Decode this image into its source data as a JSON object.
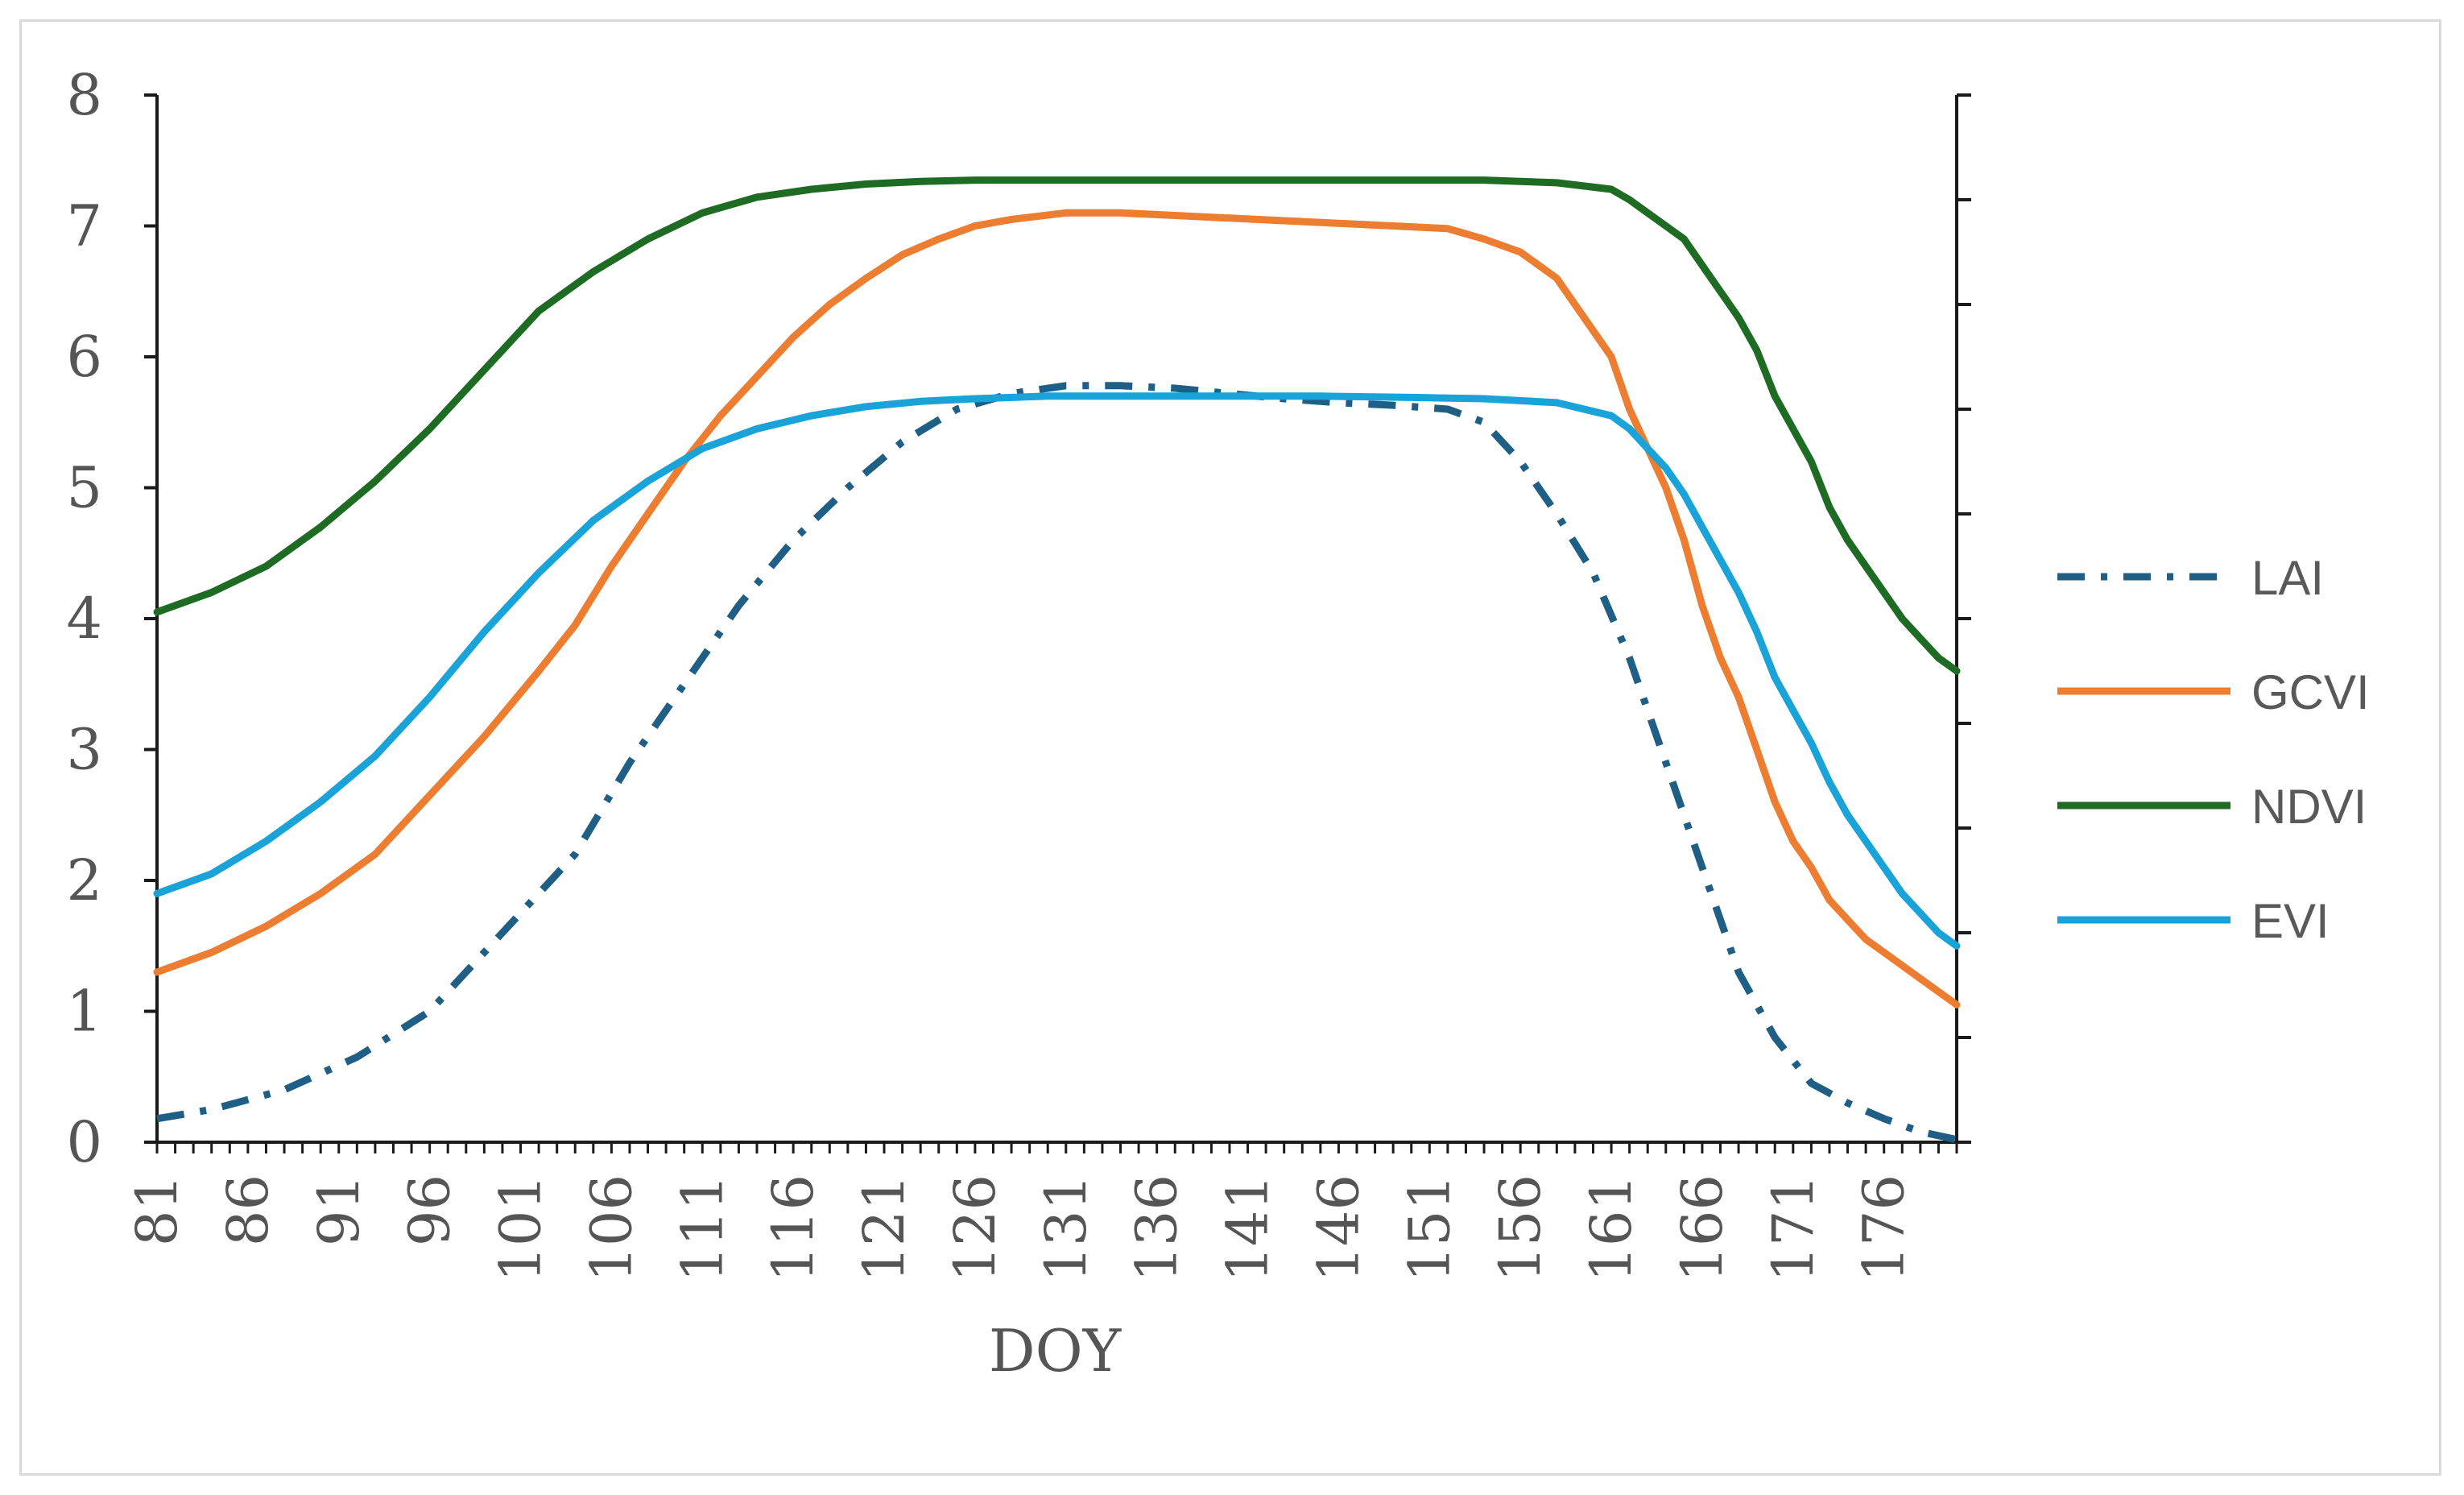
{
  "chart_data": {
    "type": "line",
    "title": "",
    "xlabel": "DOY",
    "ylabel": "",
    "ylim": [
      0,
      8
    ],
    "xlim": [
      81,
      180
    ],
    "yticks": [
      0,
      1,
      2,
      3,
      4,
      5,
      6,
      7,
      8
    ],
    "xtick_labels": [
      "81",
      "86",
      "91",
      "96",
      "101",
      "106",
      "111",
      "116",
      "121",
      "126",
      "131",
      "136",
      "141",
      "146",
      "151",
      "156",
      "161",
      "166",
      "171",
      "176"
    ],
    "grid": false,
    "legend_position": "right",
    "series": [
      {
        "name": "LAI",
        "color": "#1f5f86",
        "style": "dash-dot",
        "x": [
          81,
          84,
          88,
          92,
          96,
          100,
          104,
          107,
          110,
          113,
          116,
          119,
          122,
          125,
          128,
          131,
          134,
          137,
          140,
          143,
          146,
          149,
          152,
          154,
          156,
          158,
          160,
          162,
          164,
          166,
          168,
          170,
          172,
          174,
          176,
          178,
          180
        ],
        "values": [
          0.18,
          0.25,
          0.4,
          0.65,
          1.0,
          1.6,
          2.2,
          2.9,
          3.5,
          4.1,
          4.6,
          5.0,
          5.35,
          5.6,
          5.72,
          5.78,
          5.78,
          5.76,
          5.72,
          5.68,
          5.65,
          5.63,
          5.6,
          5.5,
          5.2,
          4.8,
          4.35,
          3.7,
          2.9,
          2.1,
          1.3,
          0.8,
          0.45,
          0.3,
          0.18,
          0.08,
          0.02
        ]
      },
      {
        "name": "GCVI",
        "color": "#ed7d31",
        "style": "solid",
        "x": [
          81,
          84,
          87,
          90,
          93,
          96,
          99,
          102,
          104,
          106,
          108,
          110,
          112,
          114,
          116,
          118,
          120,
          122,
          124,
          126,
          128,
          131,
          134,
          137,
          140,
          143,
          146,
          149,
          152,
          154,
          156,
          158,
          160,
          161,
          162,
          163,
          164,
          165,
          166,
          167,
          168,
          169,
          170,
          171,
          172,
          173,
          174,
          175,
          176,
          177,
          178,
          179,
          180
        ],
        "values": [
          1.3,
          1.45,
          1.65,
          1.9,
          2.2,
          2.65,
          3.1,
          3.6,
          3.95,
          4.4,
          4.8,
          5.2,
          5.55,
          5.85,
          6.15,
          6.4,
          6.6,
          6.78,
          6.9,
          7.0,
          7.05,
          7.1,
          7.1,
          7.08,
          7.06,
          7.04,
          7.02,
          7.0,
          6.98,
          6.9,
          6.8,
          6.6,
          6.2,
          6.0,
          5.6,
          5.3,
          5.0,
          4.6,
          4.1,
          3.7,
          3.4,
          3.0,
          2.6,
          2.3,
          2.1,
          1.85,
          1.7,
          1.55,
          1.45,
          1.35,
          1.25,
          1.15,
          1.05
        ]
      },
      {
        "name": "NDVI",
        "color": "#1e6b24",
        "style": "solid",
        "x": [
          81,
          84,
          87,
          90,
          93,
          96,
          99,
          102,
          105,
          108,
          111,
          114,
          117,
          120,
          123,
          126,
          130,
          135,
          140,
          145,
          150,
          154,
          158,
          161,
          162,
          163,
          164,
          165,
          166,
          167,
          168,
          169,
          170,
          171,
          172,
          173,
          174,
          175,
          176,
          177,
          178,
          179,
          180
        ],
        "values": [
          4.05,
          4.2,
          4.4,
          4.7,
          5.05,
          5.45,
          5.9,
          6.35,
          6.65,
          6.9,
          7.1,
          7.22,
          7.28,
          7.32,
          7.34,
          7.35,
          7.35,
          7.35,
          7.35,
          7.35,
          7.35,
          7.35,
          7.33,
          7.28,
          7.2,
          7.1,
          7.0,
          6.9,
          6.7,
          6.5,
          6.3,
          6.05,
          5.7,
          5.45,
          5.2,
          4.85,
          4.6,
          4.4,
          4.2,
          4.0,
          3.85,
          3.7,
          3.6
        ]
      },
      {
        "name": "EVI",
        "color": "#1aa3d8",
        "style": "solid",
        "x": [
          81,
          84,
          87,
          90,
          93,
          96,
          99,
          102,
          105,
          108,
          111,
          114,
          117,
          120,
          123,
          126,
          130,
          135,
          140,
          145,
          150,
          154,
          158,
          161,
          162,
          163,
          164,
          165,
          166,
          167,
          168,
          169,
          170,
          171,
          172,
          173,
          174,
          175,
          176,
          177,
          178,
          179,
          180
        ],
        "values": [
          1.9,
          2.05,
          2.3,
          2.6,
          2.95,
          3.4,
          3.9,
          4.35,
          4.75,
          5.05,
          5.3,
          5.45,
          5.55,
          5.62,
          5.66,
          5.68,
          5.7,
          5.7,
          5.7,
          5.7,
          5.69,
          5.68,
          5.65,
          5.55,
          5.45,
          5.3,
          5.15,
          4.95,
          4.7,
          4.45,
          4.2,
          3.9,
          3.55,
          3.3,
          3.05,
          2.75,
          2.5,
          2.3,
          2.1,
          1.9,
          1.75,
          1.6,
          1.5
        ]
      }
    ]
  }
}
